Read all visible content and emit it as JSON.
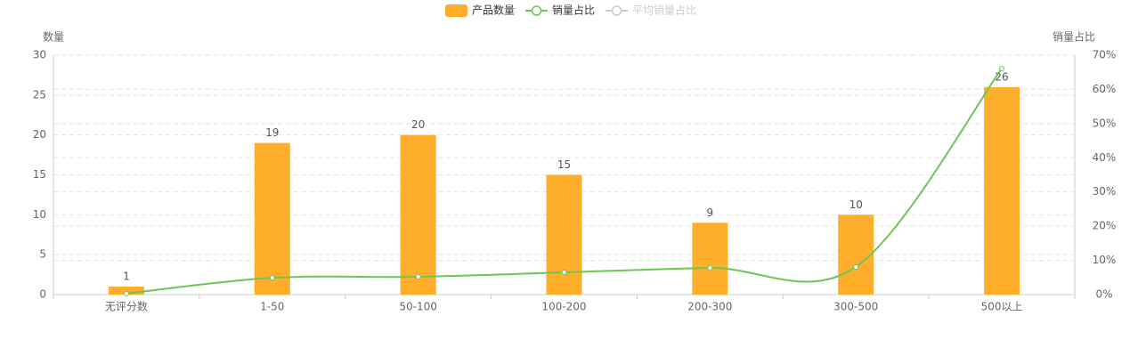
{
  "chart_data": {
    "type": "bar_line",
    "categories": [
      "无评分数",
      "1-50",
      "50-100",
      "100-200",
      "200-300",
      "300-500",
      "500以上"
    ],
    "y_label": "数量",
    "y2_label": "销量占比",
    "ylim": [
      0,
      30
    ],
    "yticks": [
      0,
      5,
      10,
      15,
      20,
      25,
      30
    ],
    "y2lim": [
      0,
      70
    ],
    "y2ticks": [
      {
        "value": 0,
        "label": "0%"
      },
      {
        "value": 10,
        "label": "10%"
      },
      {
        "value": 20,
        "label": "20%"
      },
      {
        "value": 30,
        "label": "30%"
      },
      {
        "value": 40,
        "label": "40%"
      },
      {
        "value": 50,
        "label": "50%"
      },
      {
        "value": 60,
        "label": "60%"
      },
      {
        "value": 70,
        "label": "70%"
      }
    ],
    "grid": true,
    "legend": "top",
    "series": [
      {
        "name": "产品数量",
        "type": "bar",
        "color": "#ffae2c",
        "values": [
          1,
          19,
          20,
          15,
          9,
          10,
          26
        ]
      },
      {
        "name": "销量占比",
        "type": "line",
        "axis": "y2",
        "color": "#6dc653",
        "values": [
          0.3,
          4.9,
          5.2,
          6.5,
          7.8,
          8.1,
          66.1
        ]
      },
      {
        "name": "平均销量占比",
        "type": "line",
        "axis": "y2",
        "color": "#cccccc",
        "visible": false
      }
    ]
  }
}
